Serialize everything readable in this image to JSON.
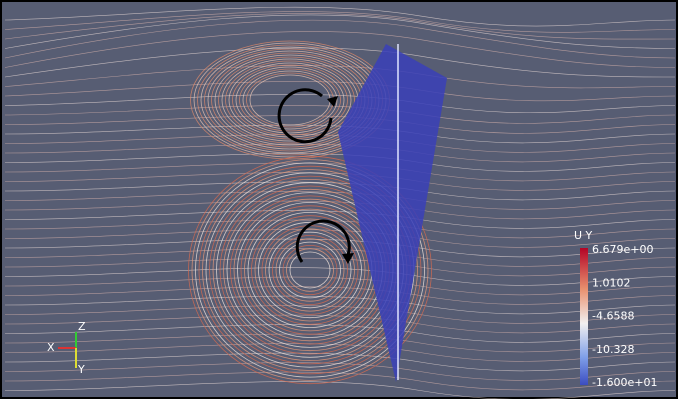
{
  "colorbar": {
    "title": "U Y",
    "labels": [
      "6.679e+00",
      "1.0102",
      "-4.6588",
      "-10.328",
      "-1.600e+01"
    ]
  },
  "axes": {
    "z": "Z",
    "x": "X",
    "y": "Y"
  }
}
